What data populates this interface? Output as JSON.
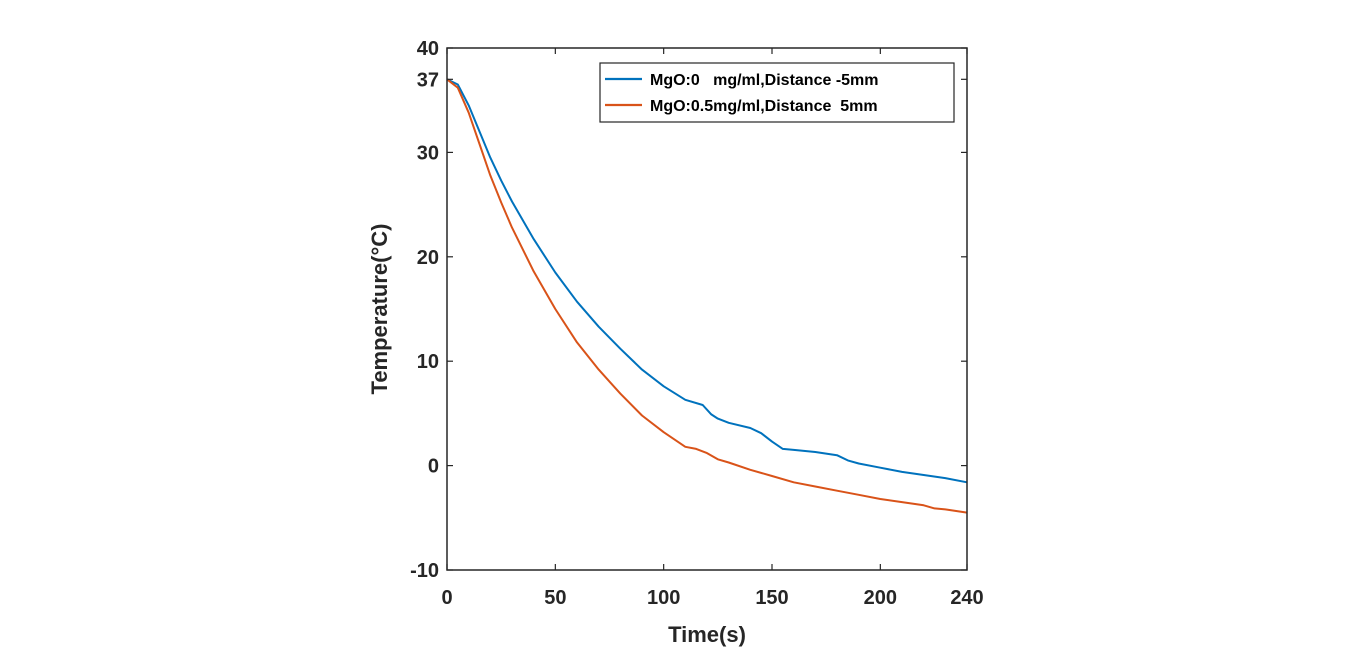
{
  "chart_data": {
    "type": "line",
    "xlabel": "Time(s)",
    "ylabel": "Temperature(°C)",
    "xlim": [
      0,
      240
    ],
    "ylim": [
      -10,
      40
    ],
    "xticks": [
      0,
      50,
      100,
      150,
      200,
      240
    ],
    "xtick_labels": [
      "0",
      "50",
      "100",
      "150",
      "200",
      "240"
    ],
    "yticks": [
      -10,
      0,
      10,
      20,
      30,
      37,
      40
    ],
    "ytick_labels": [
      "-10",
      "0",
      "10",
      "20",
      "30",
      "37",
      "40"
    ],
    "grid": false,
    "legend_position": "top-right",
    "series": [
      {
        "name": "MgO:0   mg/ml,Distance -5mm",
        "color": "#0072BD",
        "x": [
          0,
          5,
          10,
          15,
          20,
          25,
          30,
          40,
          50,
          60,
          70,
          80,
          90,
          100,
          110,
          118,
          122,
          125,
          130,
          140,
          145,
          150,
          155,
          160,
          170,
          180,
          185,
          190,
          200,
          210,
          220,
          230,
          240
        ],
        "y": [
          37,
          36.5,
          34.5,
          32,
          29.5,
          27.3,
          25.3,
          21.7,
          18.5,
          15.7,
          13.3,
          11.2,
          9.2,
          7.6,
          6.3,
          5.8,
          4.9,
          4.5,
          4.1,
          3.6,
          3.1,
          2.3,
          1.6,
          1.5,
          1.3,
          1.0,
          0.5,
          0.2,
          -0.2,
          -0.6,
          -0.9,
          -1.2,
          -1.6
        ]
      },
      {
        "name": "MgO:0.5mg/ml,Distance  5mm",
        "color": "#D95319",
        "x": [
          0,
          5,
          10,
          15,
          20,
          25,
          30,
          40,
          50,
          60,
          70,
          80,
          90,
          100,
          110,
          115,
          120,
          125,
          130,
          140,
          150,
          160,
          170,
          180,
          190,
          200,
          210,
          220,
          225,
          230,
          240
        ],
        "y": [
          37,
          36.2,
          33.8,
          30.8,
          27.8,
          25.2,
          22.8,
          18.6,
          15.0,
          11.8,
          9.2,
          6.9,
          4.8,
          3.2,
          1.8,
          1.6,
          1.2,
          0.6,
          0.3,
          -0.4,
          -1.0,
          -1.6,
          -2.0,
          -2.4,
          -2.8,
          -3.2,
          -3.5,
          -3.8,
          -4.1,
          -4.2,
          -4.5
        ]
      }
    ]
  }
}
